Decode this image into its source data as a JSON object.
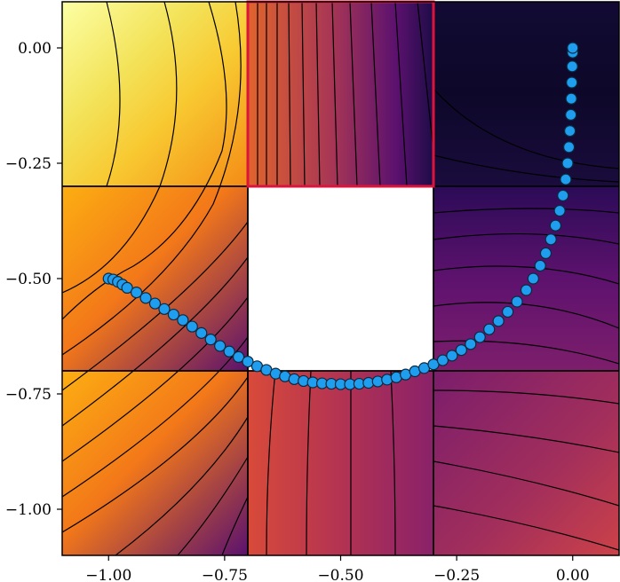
{
  "chart_data": {
    "type": "contour",
    "title": "",
    "xlabel": "",
    "ylabel": "",
    "xlim": [
      -1.1,
      0.1
    ],
    "ylim": [
      -1.1,
      0.1
    ],
    "grid": false,
    "colormap": "inferno",
    "x_ticks": [
      -1.0,
      -0.75,
      -0.5,
      -0.25,
      0.0
    ],
    "x_tick_labels": [
      "−1.00",
      "−0.75",
      "−0.50",
      "−0.25",
      "0.00"
    ],
    "y_ticks": [
      0.0,
      -0.25,
      -0.5,
      -0.75,
      -1.0
    ],
    "y_tick_labels": [
      "0.00",
      "−0.25",
      "−0.50",
      "−0.75",
      "−1.00"
    ],
    "grid_lines_x": [
      -0.7,
      -0.3
    ],
    "grid_lines_y": [
      -0.3,
      -0.7
    ],
    "excluded_cell": {
      "x": [
        -0.7,
        -0.3
      ],
      "y": [
        -0.7,
        -0.3
      ]
    },
    "highlighted_cell": {
      "x": [
        -0.7,
        -0.3
      ],
      "y": [
        -0.3,
        0.1
      ],
      "color": "#dc143c"
    },
    "path_color": "#1f9ef0",
    "path": [
      [
        -1.0,
        -0.5
      ],
      [
        -0.99,
        -0.502
      ],
      [
        -0.98,
        -0.507
      ],
      [
        -0.97,
        -0.513
      ],
      [
        -0.96,
        -0.52
      ],
      [
        -0.94,
        -0.53
      ],
      [
        -0.92,
        -0.542
      ],
      [
        -0.9,
        -0.554
      ],
      [
        -0.88,
        -0.566
      ],
      [
        -0.86,
        -0.578
      ],
      [
        -0.84,
        -0.59
      ],
      [
        -0.82,
        -0.604
      ],
      [
        -0.8,
        -0.618
      ],
      [
        -0.78,
        -0.632
      ],
      [
        -0.76,
        -0.646
      ],
      [
        -0.74,
        -0.658
      ],
      [
        -0.72,
        -0.67
      ],
      [
        -0.7,
        -0.68
      ],
      [
        -0.68,
        -0.69
      ],
      [
        -0.66,
        -0.698
      ],
      [
        -0.64,
        -0.706
      ],
      [
        -0.62,
        -0.712
      ],
      [
        -0.6,
        -0.718
      ],
      [
        -0.58,
        -0.722
      ],
      [
        -0.56,
        -0.725
      ],
      [
        -0.54,
        -0.727
      ],
      [
        -0.52,
        -0.728
      ],
      [
        -0.5,
        -0.729
      ],
      [
        -0.48,
        -0.729
      ],
      [
        -0.46,
        -0.728
      ],
      [
        -0.44,
        -0.726
      ],
      [
        -0.42,
        -0.723
      ],
      [
        -0.4,
        -0.719
      ],
      [
        -0.38,
        -0.714
      ],
      [
        -0.36,
        -0.708
      ],
      [
        -0.34,
        -0.701
      ],
      [
        -0.32,
        -0.694
      ],
      [
        -0.3,
        -0.686
      ],
      [
        -0.28,
        -0.677
      ],
      [
        -0.26,
        -0.667
      ],
      [
        -0.24,
        -0.655
      ],
      [
        -0.22,
        -0.642
      ],
      [
        -0.2,
        -0.627
      ],
      [
        -0.18,
        -0.61
      ],
      [
        -0.16,
        -0.592
      ],
      [
        -0.14,
        -0.572
      ],
      [
        -0.12,
        -0.55
      ],
      [
        -0.1,
        -0.525
      ],
      [
        -0.085,
        -0.5
      ],
      [
        -0.07,
        -0.472
      ],
      [
        -0.058,
        -0.445
      ],
      [
        -0.047,
        -0.415
      ],
      [
        -0.037,
        -0.385
      ],
      [
        -0.028,
        -0.353
      ],
      [
        -0.021,
        -0.32
      ],
      [
        -0.015,
        -0.285
      ],
      [
        -0.011,
        -0.25
      ],
      [
        -0.008,
        -0.215
      ],
      [
        -0.006,
        -0.18
      ],
      [
        -0.004,
        -0.145
      ],
      [
        -0.003,
        -0.11
      ],
      [
        -0.002,
        -0.075
      ],
      [
        -0.001,
        -0.04
      ],
      [
        0.0,
        -0.01
      ],
      [
        0.0,
        0.0
      ]
    ]
  }
}
